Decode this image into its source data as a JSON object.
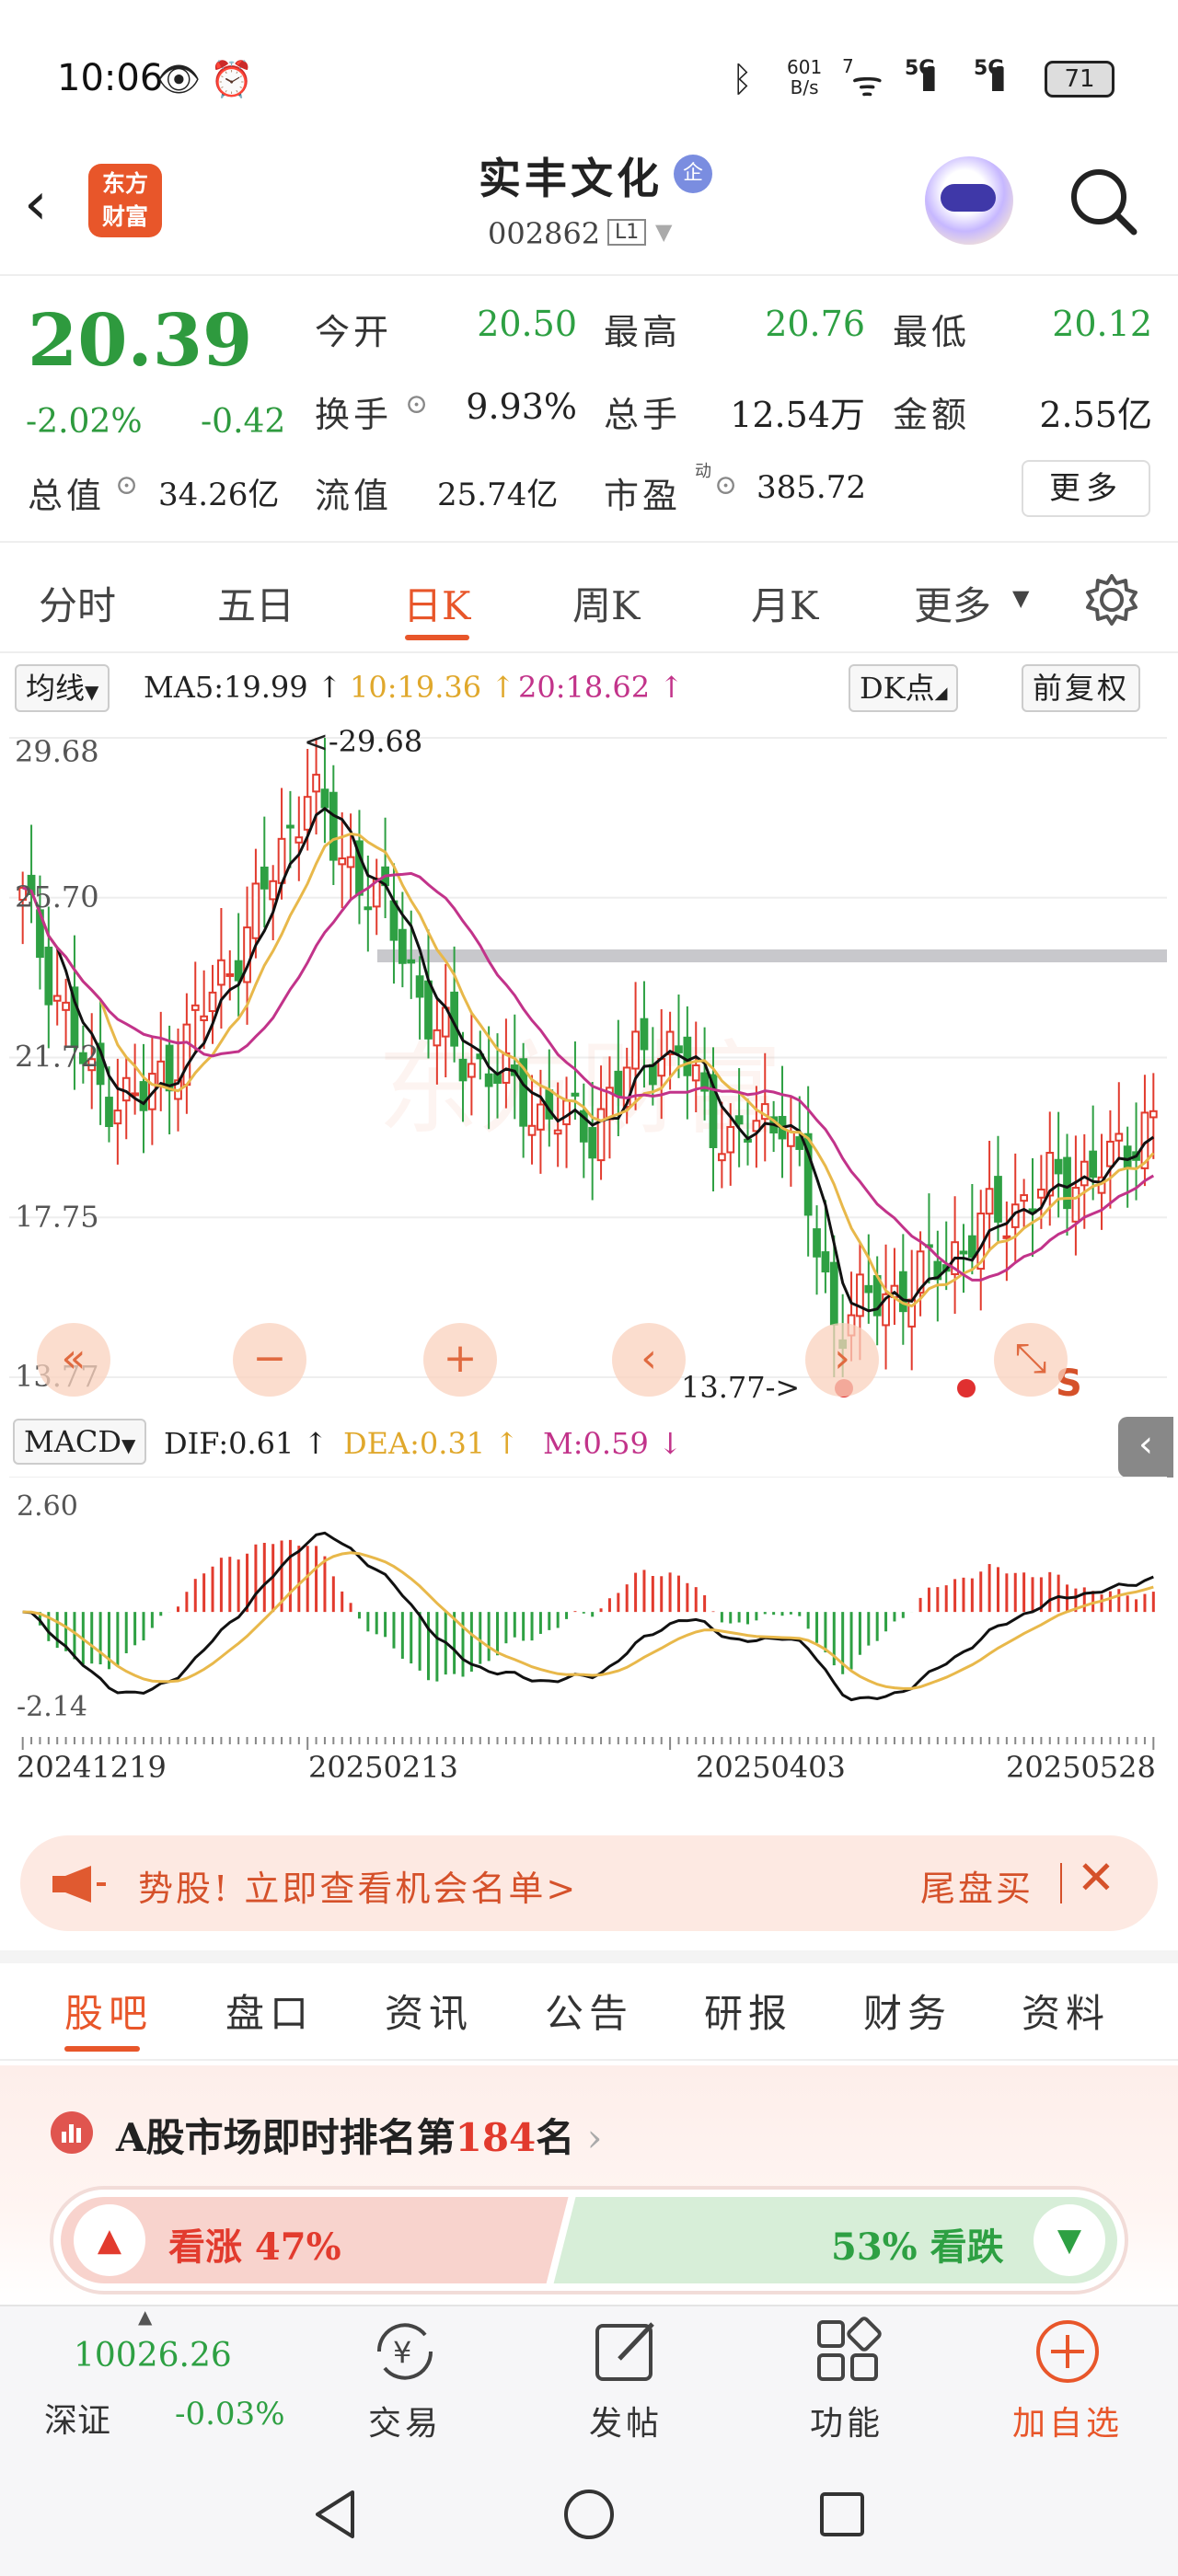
{
  "status_bar": {
    "time": "10:06",
    "net_speed_value": "601",
    "net_speed_unit": "B/s",
    "battery": "71",
    "signal_1": "5G",
    "signal_2": "5G",
    "wifi_badge": "7"
  },
  "header": {
    "broker_logo_line1": "东方",
    "broker_logo_line2": "财富",
    "stock_name": "实丰文化",
    "enterprise_badge": "企",
    "stock_code": "002862",
    "level_badge": "L1"
  },
  "quote": {
    "price": "20.39",
    "change_pct": "-2.02%",
    "change_amt": "-0.42",
    "stats": [
      {
        "label": "今开",
        "value": "20.50",
        "tone": "down"
      },
      {
        "label": "最高",
        "value": "20.76",
        "tone": "down"
      },
      {
        "label": "最低",
        "value": "20.12",
        "tone": "down"
      },
      {
        "label": "换手",
        "value": "9.93%",
        "tone": "neutral"
      },
      {
        "label": "总手",
        "value": "12.54万",
        "tone": "neutral"
      },
      {
        "label": "金额",
        "value": "2.55亿",
        "tone": "neutral"
      },
      {
        "label": "总值",
        "value": "34.26亿",
        "tone": "neutral"
      },
      {
        "label": "流值",
        "value": "25.74亿",
        "tone": "neutral"
      },
      {
        "label": "市盈",
        "value": "385.72",
        "tone": "neutral"
      }
    ],
    "pe_superscript": "动",
    "more_label": "更多"
  },
  "period_tabs": [
    "分时",
    "五日",
    "日K",
    "周K",
    "月K",
    "更多"
  ],
  "ma_legend": {
    "selector": "均线",
    "ma5": "MA5:19.99 ↑",
    "ma10": "10:19.36 ↑",
    "ma20": "20:18.62 ↑",
    "dk_label": "DK点",
    "adjust_label": "前复权"
  },
  "kline": {
    "y_labels": [
      "29.68",
      "25.70",
      "21.72",
      "17.75",
      "13.77"
    ],
    "max_annotation": "<-29.68",
    "min_annotation": "13.77->",
    "s_marker": "S",
    "controls": [
      "«",
      "−",
      "+",
      "‹",
      "›",
      "⤡"
    ]
  },
  "macd": {
    "selector": "MACD",
    "dif": "DIF:0.61 ↑",
    "dea": "DEA:0.31 ↑",
    "m": "M:0.59 ↓",
    "y_top": "2.60",
    "y_bottom": "-2.14",
    "dates": [
      "20241219",
      "20250213",
      "20250403",
      "20250528"
    ]
  },
  "colors": {
    "up": "#e23b2e",
    "down": "#2ea043",
    "ma5": "#111111",
    "ma10": "#e8b84a",
    "ma20": "#c2338a",
    "accent": "#e8562a"
  },
  "banner": {
    "text": "势股! 立即查看机会名单>",
    "right_text": "尾盘买"
  },
  "sub_tabs": [
    "股吧",
    "盘口",
    "资讯",
    "公告",
    "研报",
    "财务",
    "资料"
  ],
  "rank": {
    "prefix": "A股市场即时排名第",
    "number": "184",
    "suffix": "名"
  },
  "vote": {
    "bull_label": "看涨 47%",
    "bear_label": "53% 看跌",
    "bull_fraction": 0.47
  },
  "bottom_nav": {
    "index_value": "10026.26",
    "index_name": "深证",
    "index_change": "-0.03%",
    "items": [
      "交易",
      "发帖",
      "功能",
      "加自选"
    ]
  },
  "chart_data": [
    {
      "type": "candlestick",
      "title": "",
      "y_range": [
        13.77,
        29.68
      ],
      "x_range": [
        "20241219",
        "20250528"
      ],
      "max": 29.68,
      "min": 13.77,
      "last_close": 20.39,
      "series": [
        {
          "name": "MA5",
          "last": 19.99
        },
        {
          "name": "MA10",
          "last": 19.36
        },
        {
          "name": "MA20",
          "last": 18.62
        }
      ]
    },
    {
      "type": "bar",
      "title": "",
      "y_range": [
        -2.14,
        2.6
      ],
      "series": [
        {
          "name": "DIF",
          "last": 0.61
        },
        {
          "name": "DEA",
          "last": 0.31
        },
        {
          "name": "M",
          "last": 0.59
        }
      ]
    }
  ]
}
